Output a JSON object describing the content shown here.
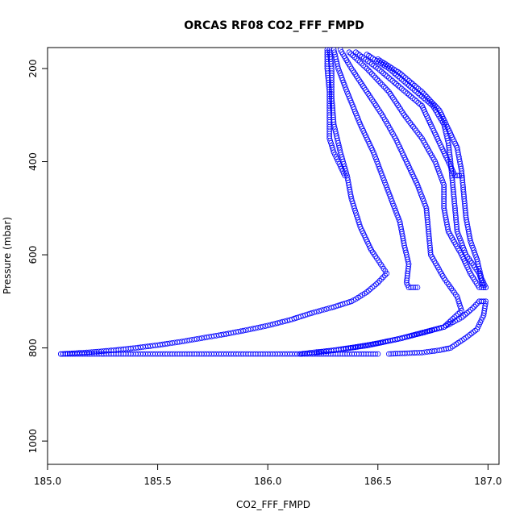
{
  "chart_data": {
    "type": "scatter",
    "title": "ORCAS RF08 CO2_FFF_FMPD",
    "xlabel": "CO2_FFF_FMPD",
    "ylabel": "Pressure (mbar)",
    "xlim": [
      185.0,
      187.05
    ],
    "ylim": [
      1050,
      155
    ],
    "y_inverted": true,
    "x_ticks": [
      "185.0",
      "185.5",
      "186.0",
      "186.5",
      "187.0"
    ],
    "x_tick_values": [
      185.0,
      185.5,
      186.0,
      186.5,
      187.0
    ],
    "y_ticks": [
      "200",
      "400",
      "600",
      "800",
      "1000"
    ],
    "y_tick_values": [
      200,
      400,
      600,
      800,
      1000
    ],
    "grid": false,
    "legend": "none",
    "marker": "open-circle",
    "color": "#0000ff",
    "series": [
      {
        "points": [
          [
            186.27,
            160
          ],
          [
            186.27,
            200
          ],
          [
            186.28,
            250
          ],
          [
            186.28,
            300
          ],
          [
            186.28,
            350
          ],
          [
            186.3,
            380
          ],
          [
            186.33,
            410
          ],
          [
            186.35,
            430
          ]
        ]
      },
      {
        "points": [
          [
            186.28,
            160
          ],
          [
            186.29,
            200
          ],
          [
            186.29,
            260
          ],
          [
            186.3,
            320
          ],
          [
            186.33,
            380
          ],
          [
            186.36,
            430
          ],
          [
            186.38,
            480
          ],
          [
            186.42,
            540
          ],
          [
            186.47,
            590
          ],
          [
            186.52,
            625
          ],
          [
            186.54,
            640
          ],
          [
            186.5,
            660
          ],
          [
            186.45,
            680
          ],
          [
            186.4,
            695
          ],
          [
            186.38,
            700
          ],
          [
            186.3,
            712
          ],
          [
            186.2,
            725
          ],
          [
            186.1,
            740
          ],
          [
            186.0,
            752
          ],
          [
            185.9,
            762
          ],
          [
            185.8,
            771
          ],
          [
            185.7,
            779
          ],
          [
            185.6,
            787
          ],
          [
            185.5,
            794
          ],
          [
            185.4,
            800
          ],
          [
            185.3,
            805
          ],
          [
            185.2,
            809
          ],
          [
            185.1,
            812
          ],
          [
            185.06,
            813
          ]
        ]
      },
      {
        "points": [
          [
            185.06,
            813
          ],
          [
            185.2,
            813
          ],
          [
            185.4,
            813
          ],
          [
            185.6,
            813
          ],
          [
            185.8,
            813
          ],
          [
            186.0,
            813
          ],
          [
            186.2,
            813
          ],
          [
            186.35,
            813
          ],
          [
            186.5,
            813
          ]
        ]
      },
      {
        "points": [
          [
            186.3,
            160
          ],
          [
            186.32,
            200
          ],
          [
            186.36,
            250
          ],
          [
            186.42,
            320
          ],
          [
            186.48,
            380
          ],
          [
            186.52,
            430
          ],
          [
            186.56,
            480
          ],
          [
            186.6,
            530
          ],
          [
            186.62,
            580
          ],
          [
            186.64,
            620
          ],
          [
            186.63,
            660
          ],
          [
            186.64,
            670
          ],
          [
            186.68,
            670
          ]
        ]
      },
      {
        "points": [
          [
            186.33,
            160
          ],
          [
            186.38,
            200
          ],
          [
            186.45,
            250
          ],
          [
            186.52,
            300
          ],
          [
            186.58,
            350
          ],
          [
            186.63,
            400
          ],
          [
            186.68,
            450
          ],
          [
            186.72,
            500
          ],
          [
            186.73,
            550
          ],
          [
            186.74,
            600
          ],
          [
            186.8,
            650
          ],
          [
            186.86,
            690
          ],
          [
            186.88,
            720
          ],
          [
            186.8,
            755
          ],
          [
            186.6,
            780
          ],
          [
            186.45,
            795
          ],
          [
            186.3,
            805
          ],
          [
            186.2,
            810
          ],
          [
            186.15,
            813
          ]
        ]
      },
      {
        "points": [
          [
            186.37,
            165
          ],
          [
            186.45,
            200
          ],
          [
            186.55,
            250
          ],
          [
            186.62,
            300
          ],
          [
            186.7,
            350
          ],
          [
            186.76,
            400
          ],
          [
            186.8,
            450
          ],
          [
            186.8,
            500
          ],
          [
            186.82,
            550
          ],
          [
            186.88,
            600
          ],
          [
            186.92,
            640
          ],
          [
            186.96,
            670
          ],
          [
            186.99,
            670
          ]
        ]
      },
      {
        "points": [
          [
            186.4,
            165
          ],
          [
            186.5,
            200
          ],
          [
            186.6,
            240
          ],
          [
            186.7,
            280
          ],
          [
            186.74,
            320
          ],
          [
            186.78,
            360
          ],
          [
            186.82,
            400
          ],
          [
            186.85,
            430
          ],
          [
            186.88,
            430
          ]
        ]
      },
      {
        "points": [
          [
            186.45,
            170
          ],
          [
            186.55,
            200
          ],
          [
            186.65,
            240
          ],
          [
            186.75,
            280
          ],
          [
            186.8,
            320
          ],
          [
            186.82,
            360
          ],
          [
            186.83,
            400
          ],
          [
            186.84,
            450
          ],
          [
            186.85,
            500
          ],
          [
            186.86,
            550
          ],
          [
            186.9,
            600
          ],
          [
            186.96,
            640
          ],
          [
            186.98,
            670
          ]
        ]
      },
      {
        "points": [
          [
            186.5,
            180
          ],
          [
            186.6,
            210
          ],
          [
            186.7,
            250
          ],
          [
            186.78,
            290
          ],
          [
            186.82,
            330
          ],
          [
            186.86,
            370
          ],
          [
            186.88,
            420
          ],
          [
            186.89,
            470
          ],
          [
            186.9,
            520
          ],
          [
            186.92,
            570
          ],
          [
            186.95,
            610
          ],
          [
            186.97,
            650
          ],
          [
            186.99,
            670
          ]
        ]
      },
      {
        "points": [
          [
            186.97,
            700
          ],
          [
            186.99,
            700
          ],
          [
            186.98,
            730
          ],
          [
            186.95,
            760
          ],
          [
            186.9,
            778
          ],
          [
            186.83,
            800
          ],
          [
            186.78,
            805
          ],
          [
            186.7,
            810
          ],
          [
            186.6,
            812
          ],
          [
            186.55,
            813
          ]
        ]
      },
      {
        "points": [
          [
            186.96,
            700
          ],
          [
            186.93,
            715
          ],
          [
            186.88,
            735
          ],
          [
            186.8,
            755
          ],
          [
            186.7,
            768
          ],
          [
            186.6,
            780
          ],
          [
            186.5,
            790
          ],
          [
            186.4,
            798
          ],
          [
            186.3,
            805
          ],
          [
            186.22,
            810
          ]
        ]
      }
    ]
  }
}
